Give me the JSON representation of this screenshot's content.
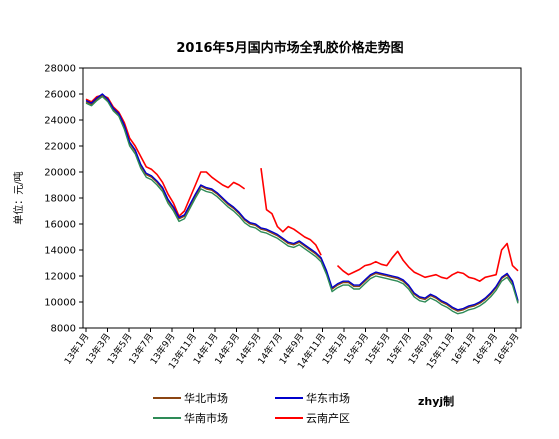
{
  "chart_data": {
    "type": "line",
    "title": "2016年5月国内市场全乳胶价格走势图",
    "ylabel": "单位：元/吨",
    "xlabel": "",
    "ylim": [
      8000,
      28000
    ],
    "yticks": [
      8000,
      10000,
      12000,
      14000,
      16000,
      18000,
      20000,
      22000,
      24000,
      26000,
      28000
    ],
    "x_tick_labels": [
      "13年1月",
      "13年3月",
      "13年5月",
      "13年7月",
      "13年9月",
      "13年11月",
      "14年1月",
      "14年3月",
      "14年5月",
      "14年7月",
      "14年9月",
      "14年11月",
      "15年1月",
      "15年3月",
      "15年5月",
      "15年7月",
      "15年9月",
      "15年11月",
      "16年1月",
      "16年3月",
      "16年5月"
    ],
    "grid": false,
    "legend_position": "bottom",
    "credit": "zhyj制",
    "series": [
      {
        "name": "华北市场",
        "color": "#8B4513",
        "values": [
          25400,
          25200,
          25600,
          25900,
          25500,
          24800,
          24400,
          23500,
          22200,
          21600,
          20500,
          19800,
          19600,
          19200,
          18700,
          17800,
          17200,
          16400,
          16600,
          17400,
          18200,
          18900,
          18700,
          18600,
          18300,
          17900,
          17500,
          17200,
          16800,
          16300,
          16000,
          15900,
          15600,
          15500,
          15300,
          15100,
          14800,
          14500,
          14400,
          14600,
          14300,
          14000,
          13700,
          13300,
          12300,
          11000,
          11300,
          11500,
          11500,
          11200,
          11200,
          11600,
          12000,
          12200,
          12100,
          12000,
          11900,
          11800,
          11600,
          11200,
          10600,
          10300,
          10200,
          10500,
          10300,
          10000,
          9800,
          9500,
          9300,
          9400,
          9600,
          9700,
          9900,
          10200,
          10600,
          11100,
          11800,
          12100,
          11500,
          10000
        ]
      },
      {
        "name": "华东市场",
        "color": "#0000CC",
        "values": [
          25500,
          25300,
          25700,
          26000,
          25600,
          24900,
          24500,
          23600,
          22300,
          21700,
          20600,
          19900,
          19700,
          19300,
          18800,
          17900,
          17300,
          16500,
          16700,
          17500,
          18300,
          19000,
          18800,
          18700,
          18400,
          18000,
          17600,
          17300,
          16900,
          16400,
          16100,
          16000,
          15700,
          15600,
          15400,
          15200,
          14900,
          14600,
          14500,
          14700,
          14400,
          14100,
          13800,
          13400,
          12400,
          11100,
          11400,
          11600,
          11600,
          11300,
          11300,
          11700,
          12100,
          12300,
          12200,
          12100,
          12000,
          11900,
          11700,
          11300,
          10700,
          10400,
          10300,
          10600,
          10400,
          10100,
          9900,
          9600,
          9400,
          9500,
          9700,
          9800,
          10000,
          10300,
          10700,
          11200,
          11900,
          12200,
          11600,
          10100
        ]
      },
      {
        "name": "华南市场",
        "color": "#2E8B57",
        "values": [
          25300,
          25100,
          25500,
          25800,
          25400,
          24700,
          24300,
          23300,
          22000,
          21400,
          20300,
          19600,
          19400,
          19000,
          18500,
          17600,
          17000,
          16200,
          16400,
          17200,
          18000,
          18700,
          18500,
          18400,
          18100,
          17700,
          17300,
          17000,
          16600,
          16100,
          15800,
          15700,
          15400,
          15300,
          15100,
          14900,
          14600,
          14300,
          14200,
          14400,
          14100,
          13800,
          13500,
          13100,
          12100,
          10800,
          11100,
          11300,
          11300,
          11000,
          11000,
          11400,
          11800,
          12000,
          11900,
          11800,
          11700,
          11600,
          11400,
          11000,
          10400,
          10100,
          10000,
          10300,
          10100,
          9800,
          9600,
          9300,
          9100,
          9200,
          9400,
          9500,
          9700,
          10000,
          10400,
          10900,
          11600,
          11900,
          11300,
          9900
        ]
      },
      {
        "name": "云南产区",
        "color": "#FF0000",
        "values": [
          25600,
          25400,
          25800,
          25900,
          25700,
          25000,
          24600,
          23800,
          22600,
          22000,
          21200,
          20400,
          20200,
          19800,
          19200,
          18300,
          17600,
          16600,
          17000,
          18000,
          19000,
          20000,
          20000,
          19600,
          19300,
          19000,
          18800,
          19200,
          19000,
          18700,
          null,
          null,
          20300,
          17100,
          16800,
          15800,
          15400,
          15800,
          15600,
          15300,
          15000,
          14800,
          14400,
          13600,
          null,
          null,
          12800,
          12400,
          12100,
          12300,
          12500,
          12800,
          12900,
          13100,
          12900,
          12800,
          13400,
          13900,
          13200,
          12700,
          12300,
          12100,
          11900,
          12000,
          12100,
          11900,
          11800,
          12100,
          12300,
          12200,
          11900,
          11800,
          11600,
          11900,
          12000,
          12100,
          14000,
          14500,
          12800,
          12400
        ]
      }
    ]
  }
}
